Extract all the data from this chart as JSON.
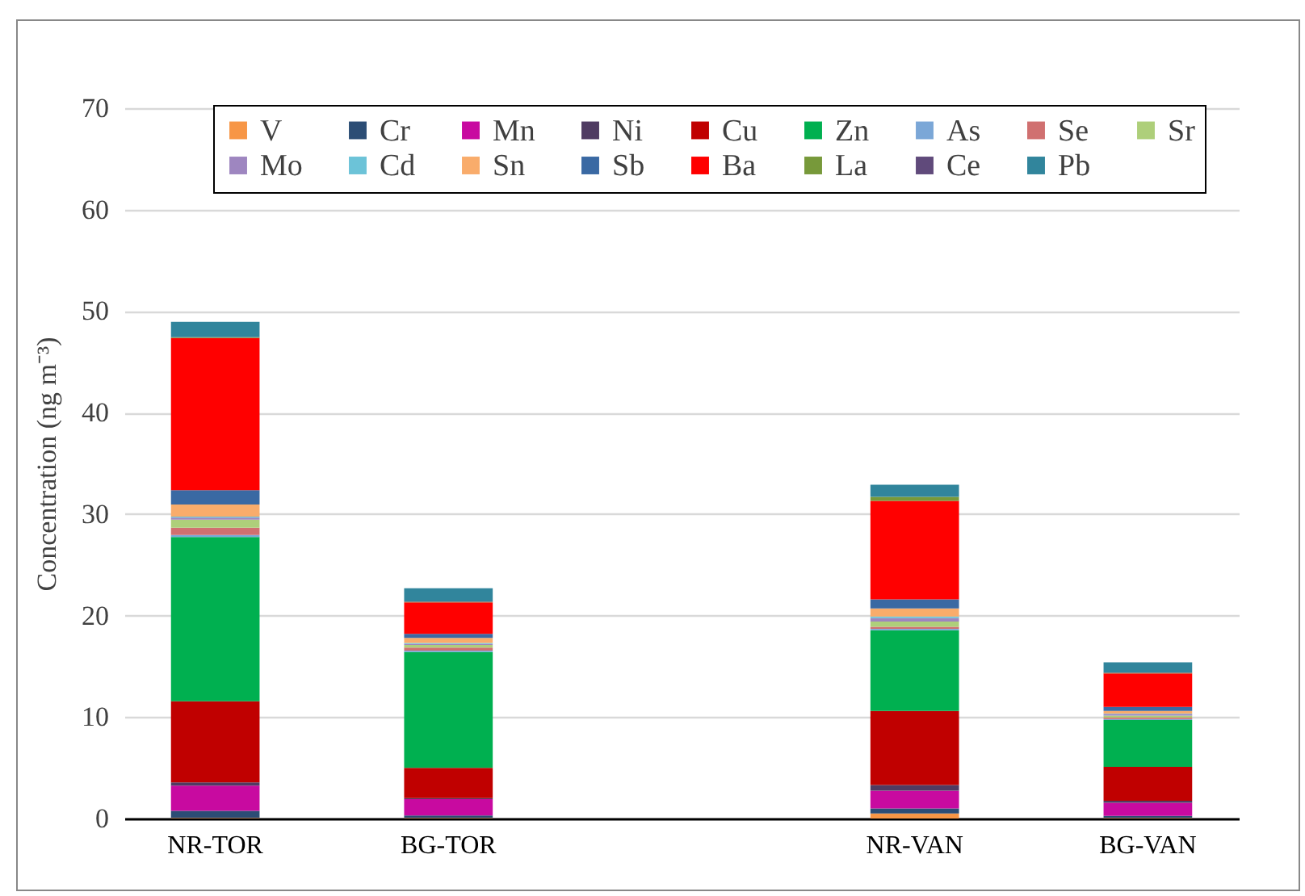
{
  "chart_data": {
    "type": "bar",
    "stacked": true,
    "ylabel": "Concentration (ng m⁻³)",
    "categories": [
      "NR-TOR",
      "BG-TOR",
      null,
      "NR-VAN",
      "BG-VAN"
    ],
    "ylim": [
      0,
      70
    ],
    "yticks": [
      0,
      10,
      20,
      30,
      40,
      50,
      60,
      70
    ],
    "grid": "y",
    "legend": "top",
    "series": [
      {
        "name": "V",
        "color": "#f79646",
        "values": [
          0.05,
          0.05,
          null,
          0.5,
          0.05
        ]
      },
      {
        "name": "Cr",
        "color": "#2c4d75",
        "values": [
          0.7,
          0.25,
          null,
          0.5,
          0.2
        ]
      },
      {
        "name": "Mn",
        "color": "#c80aa0",
        "values": [
          2.5,
          1.6,
          null,
          1.75,
          1.3
        ]
      },
      {
        "name": "Ni",
        "color": "#4f3b62",
        "values": [
          0.3,
          0.1,
          null,
          0.55,
          0.2
        ]
      },
      {
        "name": "Cu",
        "color": "#c00000",
        "values": [
          8.0,
          3.0,
          null,
          7.3,
          3.35
        ]
      },
      {
        "name": "Zn",
        "color": "#00b050",
        "values": [
          16.2,
          11.4,
          null,
          7.95,
          4.6
        ]
      },
      {
        "name": "As",
        "color": "#7ba7d7",
        "values": [
          0.2,
          0.15,
          null,
          0.15,
          0.1
        ]
      },
      {
        "name": "Se",
        "color": "#d07070",
        "values": [
          0.7,
          0.3,
          null,
          0.2,
          0.15
        ]
      },
      {
        "name": "Sr",
        "color": "#aecf7a",
        "values": [
          0.8,
          0.25,
          null,
          0.5,
          0.2
        ]
      },
      {
        "name": "Mo",
        "color": "#9e86c0",
        "values": [
          0.2,
          0.1,
          null,
          0.35,
          0.15
        ]
      },
      {
        "name": "Cd",
        "color": "#6cc3d8",
        "values": [
          0.1,
          0.1,
          null,
          0.15,
          0.05
        ]
      },
      {
        "name": "Sn",
        "color": "#f9ac6b",
        "values": [
          1.2,
          0.5,
          null,
          0.8,
          0.25
        ]
      },
      {
        "name": "Sb",
        "color": "#3a69a3",
        "values": [
          1.4,
          0.4,
          null,
          0.9,
          0.4
        ]
      },
      {
        "name": "Ba",
        "color": "#ff0000",
        "values": [
          15.0,
          3.1,
          null,
          9.7,
          3.3
        ]
      },
      {
        "name": "La",
        "color": "#77993a",
        "values": [
          0.05,
          0.05,
          null,
          0.4,
          0.05
        ]
      },
      {
        "name": "Ce",
        "color": "#604a7b",
        "values": [
          0.05,
          0.05,
          null,
          null,
          0.05
        ]
      },
      {
        "name": "Pb",
        "color": "#31859c",
        "values": [
          1.5,
          1.3,
          null,
          1.2,
          1.0
        ]
      }
    ]
  }
}
